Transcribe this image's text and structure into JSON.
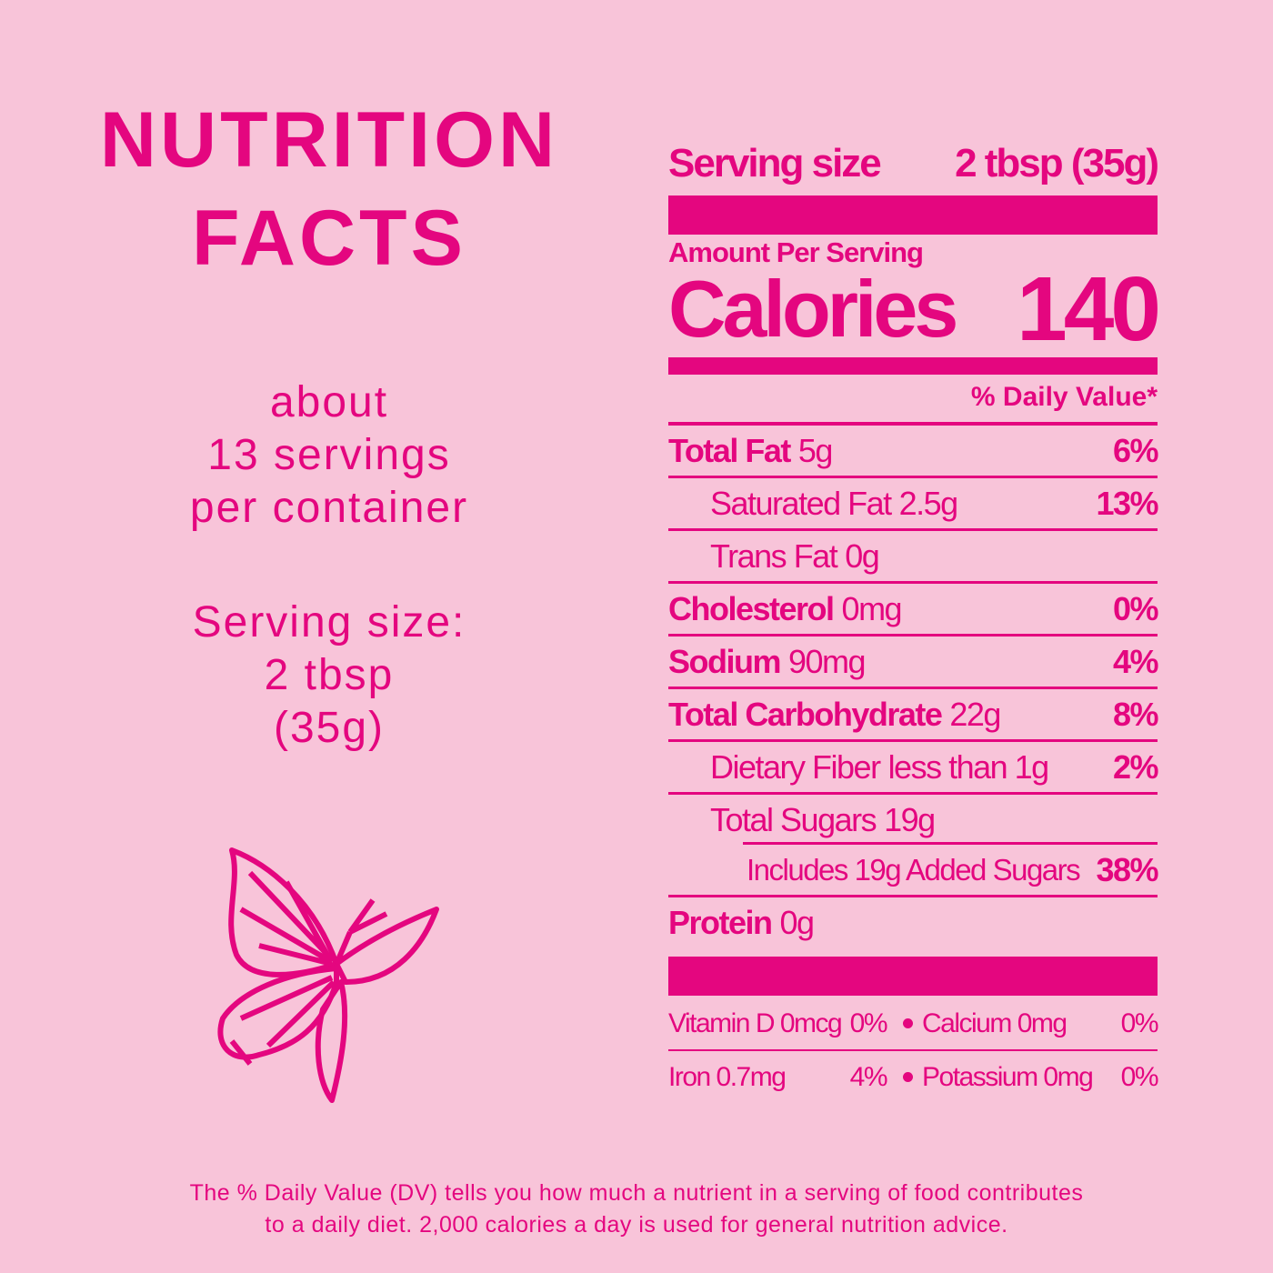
{
  "left": {
    "title": [
      "NUTRITION",
      "FACTS"
    ],
    "servings": [
      "about",
      "13 servings",
      "per container"
    ],
    "serving_size": [
      "Serving size:",
      "2 tbsp",
      "(35g)"
    ]
  },
  "label": {
    "serving_size": {
      "label": "Serving size",
      "value": "2 tbsp (35g)"
    },
    "amount_per_serving": "Amount Per Serving",
    "calories": {
      "label": "Calories",
      "value": "140"
    },
    "daily_value_header": "% Daily Value*",
    "nutrients": [
      {
        "name": "Total Fat",
        "amount": "5g",
        "dv": "6%"
      },
      {
        "name": "Saturated Fat",
        "amount": "2.5g",
        "dv": "13%"
      },
      {
        "name": "Trans Fat",
        "amount": "0g"
      },
      {
        "name": "Cholesterol",
        "amount": "0mg",
        "dv": "0%"
      },
      {
        "name": "Sodium",
        "amount": "90mg",
        "dv": "4%"
      },
      {
        "name": "Total Carbohydrate",
        "amount": "22g",
        "dv": "8%"
      },
      {
        "name": "Dietary Fiber",
        "amount": "less than 1g",
        "dv": "2%"
      },
      {
        "name": "Total Sugars",
        "amount": "19g"
      },
      {
        "name": "Includes 19g Added Sugars",
        "dv": "38%"
      },
      {
        "name": "Protein",
        "amount": "0g"
      }
    ],
    "vitamins": [
      {
        "name": "Vitamin D 0mcg",
        "dv": "0%"
      },
      {
        "name": "Calcium 0mg",
        "dv": "0%"
      },
      {
        "name": "Iron 0.7mg",
        "dv": "4%"
      },
      {
        "name": "Potassium 0mg",
        "dv": "0%"
      }
    ]
  },
  "footnote": [
    "The % Daily Value (DV) tells you how much a nutrient in a serving of food contributes",
    "to a daily diet. 2,000 calories a day is used for general nutrition advice."
  ]
}
